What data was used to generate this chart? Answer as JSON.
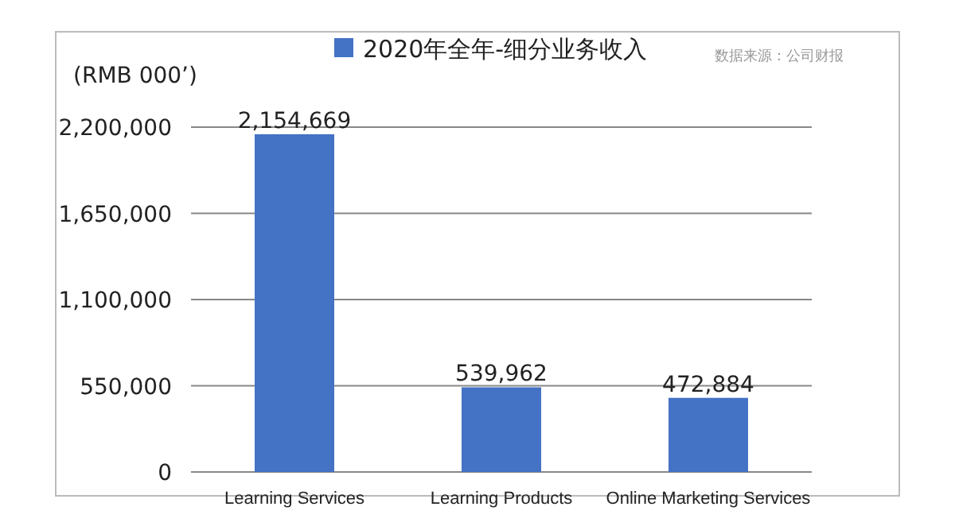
{
  "chart_data": {
    "type": "bar",
    "ylabel": "(RMB 000’)",
    "categories": [
      "Learning Services",
      "Learning Products",
      "Online Marketing Services"
    ],
    "series": [
      {
        "name": "2020年全年-细分业务收入",
        "color": "#4472c4",
        "values": [
          2154669,
          539962,
          472884
        ],
        "value_labels": [
          "2,154,669",
          "539,962",
          "472,884"
        ]
      }
    ],
    "ylim": [
      0,
      2200000
    ],
    "yticks": [
      {
        "value": 0,
        "label": "0"
      },
      {
        "value": 550000,
        "label": "550,000"
      },
      {
        "value": 1100000,
        "label": "1,100,000"
      },
      {
        "value": 1650000,
        "label": "1,650,000"
      },
      {
        "value": 2200000,
        "label": "2,200,000"
      }
    ],
    "grid": "y",
    "legend": "top",
    "annotations": [
      "数据来源：公司财报"
    ]
  }
}
